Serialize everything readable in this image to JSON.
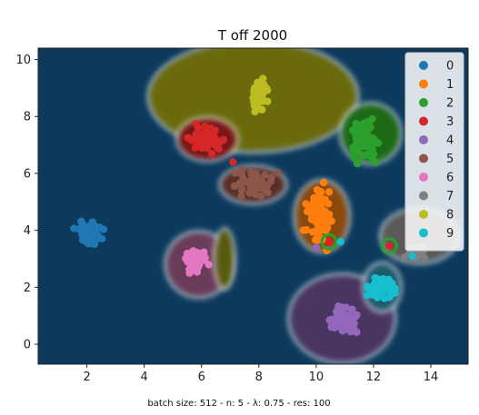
{
  "chart_data": {
    "type": "scatter",
    "title": "T off 2000",
    "caption": "batch size: 512 - n: 5 - λ: 0.75 - res: 100",
    "xlim": [
      0.3,
      15.3
    ],
    "ylim": [
      -0.7,
      10.4
    ],
    "xticks": [
      2,
      4,
      6,
      8,
      10,
      12,
      14
    ],
    "yticks": [
      0,
      2,
      4,
      6,
      8,
      10
    ],
    "legend_position": "top-right",
    "background_color": "#0d3a5c",
    "series": [
      {
        "name": "0",
        "color": "#1f77b4",
        "center": [
          2.1,
          3.9
        ],
        "spread": [
          0.35,
          0.3
        ],
        "count": 60
      },
      {
        "name": "1",
        "color": "#ff7f0e",
        "center": [
          10.1,
          4.5
        ],
        "spread": [
          0.35,
          0.8
        ],
        "count": 60
      },
      {
        "name": "2",
        "color": "#2ca02c",
        "center": [
          11.7,
          7.1
        ],
        "spread": [
          0.4,
          0.55
        ],
        "count": 60
      },
      {
        "name": "3",
        "color": "#d62728",
        "center": [
          6.2,
          7.2
        ],
        "spread": [
          0.45,
          0.35
        ],
        "count": 50
      },
      {
        "name": "4",
        "color": "#9467bd",
        "center": [
          10.9,
          0.85
        ],
        "spread": [
          0.4,
          0.35
        ],
        "count": 60
      },
      {
        "name": "5",
        "color": "#8c564b",
        "center": [
          7.7,
          5.6
        ],
        "spread": [
          0.65,
          0.45
        ],
        "count": 40
      },
      {
        "name": "6",
        "color": "#e377c2",
        "center": [
          5.8,
          2.9
        ],
        "spread": [
          0.3,
          0.35
        ],
        "count": 55
      },
      {
        "name": "7",
        "color": "#7f7f7f",
        "center": [
          13.5,
          3.2
        ],
        "spread": [
          0.3,
          0.2
        ],
        "count": 25
      },
      {
        "name": "8",
        "color": "#bcbd22",
        "center": [
          8.0,
          8.8
        ],
        "spread": [
          0.22,
          0.45
        ],
        "count": 55
      },
      {
        "name": "9",
        "color": "#17becf",
        "center": [
          12.3,
          2.0
        ],
        "spread": [
          0.35,
          0.35
        ],
        "count": 55
      }
    ],
    "regions": [
      {
        "color": "#6b6b10",
        "center": [
          7.8,
          8.7
        ],
        "radii": [
          3.6,
          1.9
        ]
      },
      {
        "color": "#7a1212",
        "center": [
          6.2,
          7.2
        ],
        "radii": [
          1.0,
          0.7
        ]
      },
      {
        "color": "#5a2d28",
        "center": [
          7.8,
          5.6
        ],
        "radii": [
          1.1,
          0.6
        ]
      },
      {
        "color": "#1a6b18",
        "center": [
          11.9,
          7.4
        ],
        "radii": [
          1.0,
          1.0
        ]
      },
      {
        "color": "#8a4a08",
        "center": [
          10.2,
          4.5
        ],
        "radii": [
          0.9,
          1.2
        ]
      },
      {
        "color": "#6b3a58",
        "center": [
          5.9,
          2.8
        ],
        "radii": [
          1.1,
          1.1
        ]
      },
      {
        "color": "#5a5a10",
        "center": [
          6.8,
          3.0
        ],
        "radii": [
          0.3,
          1.0
        ]
      },
      {
        "color": "#4a3660",
        "center": [
          10.9,
          0.9
        ],
        "radii": [
          1.8,
          1.5
        ]
      },
      {
        "color": "#5a5a5a",
        "center": [
          13.6,
          3.8
        ],
        "radii": [
          1.3,
          0.9
        ]
      },
      {
        "color": "#1a5a6b",
        "center": [
          12.3,
          2.0
        ],
        "radii": [
          0.6,
          0.8
        ]
      }
    ],
    "highlights": [
      {
        "x": 10.45,
        "y": 3.6,
        "color": "#d62728",
        "ring": "#2ca02c"
      },
      {
        "x": 12.55,
        "y": 3.45,
        "color": "#d62728",
        "ring": "#2ca02c"
      },
      {
        "x": 10.85,
        "y": 3.6,
        "color": "#17becf",
        "ring": ""
      },
      {
        "x": 13.35,
        "y": 3.1,
        "color": "#17becf",
        "ring": ""
      },
      {
        "x": 10.0,
        "y": 3.4,
        "color": "#9467bd",
        "ring": ""
      },
      {
        "x": 7.1,
        "y": 6.4,
        "color": "#d62728",
        "ring": ""
      }
    ]
  }
}
